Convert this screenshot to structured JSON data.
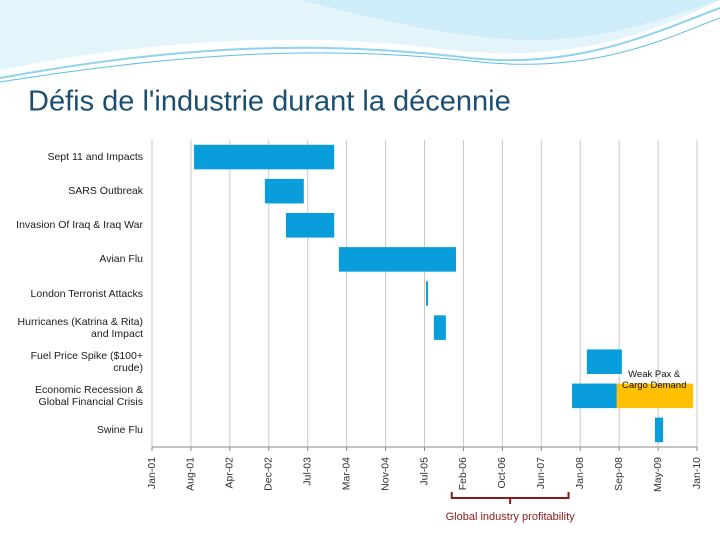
{
  "chart_data": {
    "type": "gantt",
    "title": "Défis de l'industrie durant la décennie",
    "categories": [
      "Sept 11 and Impacts",
      "SARS Outbreak",
      "Invasion Of Iraq & Iraq War",
      "Avian Flu",
      "London Terrorist Attacks",
      "Hurricanes (Katrina & Rita) and Impact",
      "Fuel Price Spike ($100+ crude)",
      "Economic Recession & Global Financial Crisis",
      "Swine Flu"
    ],
    "series": [
      {
        "color": "#0a9ddb",
        "start": [
          1.08,
          2.9,
          3.44,
          4.8,
          7.04,
          7.24,
          11.17,
          10.79,
          12.92
        ],
        "end": [
          4.68,
          3.9,
          4.68,
          7.81,
          7.09,
          7.55,
          12.07,
          11.94,
          13.13
        ]
      },
      {
        "color": "#ffc000",
        "start": [
          null,
          null,
          null,
          null,
          null,
          null,
          null,
          11.94,
          null
        ],
        "end": [
          null,
          null,
          null,
          null,
          null,
          null,
          null,
          13.9,
          null
        ]
      }
    ],
    "xlim": [
      0,
      14
    ],
    "xticks": [
      {
        "value": 0,
        "label": "Jan-01"
      },
      {
        "value": 1,
        "label": "Aug-01"
      },
      {
        "value": 2,
        "label": "Apr-02"
      },
      {
        "value": 3,
        "label": "Dec-02"
      },
      {
        "value": 4,
        "label": "Jul-03"
      },
      {
        "value": 5,
        "label": "Mar-04"
      },
      {
        "value": 6,
        "label": "Nov-04"
      },
      {
        "value": 7,
        "label": "Jul-05"
      },
      {
        "value": 8,
        "label": "Feb-06"
      },
      {
        "value": 9,
        "label": "Oct-06"
      },
      {
        "value": 10,
        "label": "Jun-07"
      },
      {
        "value": 11,
        "label": "Jan-08"
      },
      {
        "value": 12,
        "label": "Sep-08"
      },
      {
        "value": 13,
        "label": "May-09"
      },
      {
        "value": 14,
        "label": "Jan-10"
      }
    ],
    "grid": true,
    "annotations": [
      {
        "text": "Weak Pax & Cargo Demand",
        "x": 12.9,
        "row": 6.55
      },
      {
        "text": "Global industry profitability",
        "x_from": 7.7,
        "x_to": 10.7
      }
    ]
  }
}
